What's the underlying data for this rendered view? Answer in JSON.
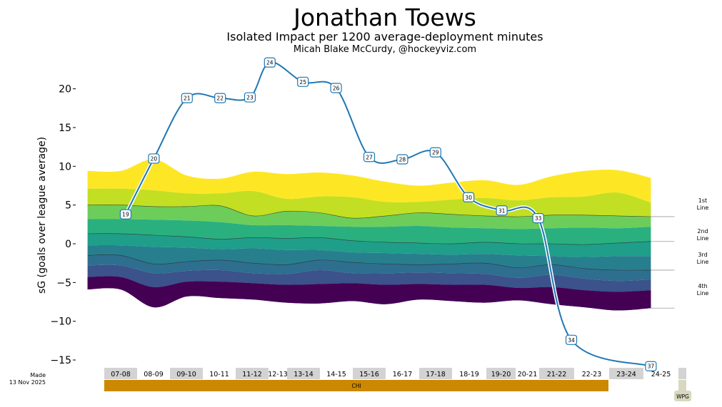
{
  "header": {
    "title": "Jonathan Toews",
    "subtitle": "Isolated Impact per 1200 average-deployment minutes",
    "credit": "Micah Blake McCurdy, @hockeyviz.com"
  },
  "footer": {
    "made_line1": "Made",
    "made_line2": "13 Nov 2025"
  },
  "line_labels": [
    {
      "l1": "1st",
      "l2": "Line"
    },
    {
      "l1": "2nd",
      "l2": "Line"
    },
    {
      "l1": "3rd",
      "l2": "Line"
    },
    {
      "l1": "4th",
      "l2": "Line"
    }
  ],
  "seasons": [
    "07-08",
    "08-09",
    "09-10",
    "10-11",
    "11-12",
    "12-13",
    "13-14",
    "14-15",
    "15-16",
    "16-17",
    "17-18",
    "18-19",
    "19-20",
    "20-21",
    "21-22",
    "22-23",
    "23-24",
    "24-25"
  ],
  "teams": [
    {
      "label": "CHI",
      "color": "#cc8800"
    },
    {
      "label": "WPG",
      "color": "#d8d8c0"
    }
  ],
  "colors": {
    "line": "#1f77b4",
    "bands": [
      "#fde725",
      "#c2df23",
      "#6ccd5a",
      "#2ab07f",
      "#1f9e89",
      "#277f8e",
      "#2e6e8e",
      "#3b528b",
      "#472d7b",
      "#440154"
    ]
  },
  "chart_data": {
    "type": "line",
    "title": "Jonathan Toews",
    "ylabel": "sG (goals over league average)",
    "ylim": [
      -16.5,
      24.5
    ],
    "yticks": [
      -15,
      -10,
      -5,
      0,
      5,
      10,
      15,
      20
    ],
    "series": [
      {
        "points": [
          {
            "x": 0.15,
            "y": 3.8,
            "label": "19"
          },
          {
            "x": 1.0,
            "y": 11.0,
            "label": "20"
          },
          {
            "x": 2.0,
            "y": 18.8,
            "label": "21"
          },
          {
            "x": 3.0,
            "y": 18.8,
            "label": "22"
          },
          {
            "x": 3.9,
            "y": 18.9,
            "label": "23"
          },
          {
            "x": 4.5,
            "y": 23.4,
            "label": "24"
          },
          {
            "x": 5.5,
            "y": 20.9,
            "label": "25"
          },
          {
            "x": 6.5,
            "y": 20.1,
            "label": "26"
          },
          {
            "x": 7.5,
            "y": 11.2,
            "label": "27"
          },
          {
            "x": 8.5,
            "y": 10.9,
            "label": "28"
          },
          {
            "x": 9.5,
            "y": 11.8,
            "label": "29"
          },
          {
            "x": 10.5,
            "y": 6.0,
            "label": "30"
          },
          {
            "x": 11.5,
            "y": 4.3,
            "label": "31"
          },
          {
            "x": 12.6,
            "y": 3.3,
            "label": "33"
          },
          {
            "x": 13.6,
            "y": -12.4,
            "label": "34"
          },
          {
            "x": 16.0,
            "y": -15.8,
            "label": "37"
          }
        ]
      }
    ],
    "band_x": [
      -1,
      0,
      1,
      2,
      3,
      4,
      5,
      6,
      7,
      8,
      9,
      10,
      11,
      12,
      13,
      14,
      15,
      16
    ],
    "band_boundaries": [
      [
        9.4,
        9.4,
        10.9,
        8.8,
        8.4,
        9.3,
        9.0,
        9.2,
        8.8,
        8.0,
        7.5,
        7.9,
        8.2,
        7.6,
        8.7,
        9.4,
        9.5,
        8.5
      ],
      [
        7.1,
        7.1,
        6.9,
        6.5,
        6.5,
        6.8,
        5.8,
        6.1,
        6.0,
        5.4,
        5.4,
        5.7,
        5.9,
        5.6,
        6.0,
        6.1,
        6.6,
        5.3
      ],
      [
        5.0,
        5.0,
        4.8,
        4.8,
        4.9,
        3.6,
        4.2,
        4.0,
        3.3,
        3.6,
        4.0,
        3.8,
        3.6,
        3.5,
        3.7,
        3.7,
        3.6,
        3.5
      ],
      [
        3.2,
        3.2,
        3.1,
        3.0,
        2.8,
        2.4,
        2.4,
        2.3,
        2.2,
        2.2,
        2.3,
        2.1,
        2.0,
        1.9,
        2.0,
        2.1,
        2.0,
        2.2
      ],
      [
        1.3,
        1.3,
        1.1,
        0.9,
        0.6,
        0.8,
        0.7,
        0.8,
        0.4,
        0.2,
        0.1,
        0.0,
        0.2,
        0.0,
        0.0,
        -0.1,
        0.1,
        0.3
      ],
      [
        -0.2,
        -0.2,
        -0.4,
        -0.5,
        -0.7,
        -0.6,
        -0.8,
        -0.8,
        -1.1,
        -1.2,
        -1.3,
        -1.4,
        -1.3,
        -1.5,
        -1.6,
        -1.7,
        -1.6,
        -1.6
      ],
      [
        -1.5,
        -1.5,
        -2.6,
        -2.3,
        -2.1,
        -2.5,
        -2.7,
        -2.1,
        -2.4,
        -2.6,
        -2.7,
        -2.6,
        -2.5,
        -3.1,
        -2.7,
        -3.2,
        -3.4,
        -3.4
      ],
      [
        -2.8,
        -2.8,
        -3.8,
        -3.5,
        -3.4,
        -3.8,
        -3.9,
        -3.4,
        -3.8,
        -3.8,
        -3.7,
        -3.8,
        -3.9,
        -4.4,
        -4.0,
        -4.5,
        -4.8,
        -4.6
      ],
      [
        -4.3,
        -4.3,
        -5.6,
        -4.9,
        -4.9,
        -5.1,
        -5.3,
        -5.2,
        -5.1,
        -5.3,
        -5.2,
        -5.3,
        -5.3,
        -5.7,
        -5.6,
        -6.0,
        -6.2,
        -6.0
      ],
      [
        -5.9,
        -5.9,
        -8.2,
        -6.8,
        -7.0,
        -7.2,
        -7.6,
        -7.7,
        -7.4,
        -7.8,
        -7.2,
        -7.4,
        -7.6,
        -7.3,
        -7.8,
        -8.2,
        -8.6,
        -8.3
      ]
    ]
  }
}
